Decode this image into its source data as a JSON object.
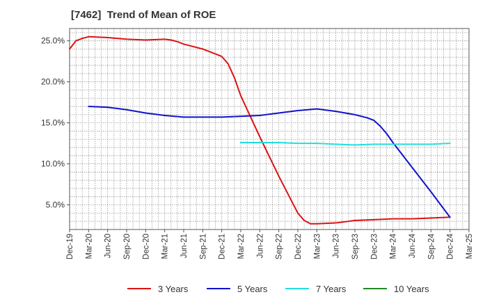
{
  "title": "[7462]  Trend of Mean of ROE",
  "chart_data": {
    "type": "line",
    "title": "[7462]  Trend of Mean of ROE",
    "xlabel": "",
    "ylabel": "",
    "x_ticks": [
      "Dec-19",
      "Mar-20",
      "Jun-20",
      "Sep-20",
      "Dec-20",
      "Mar-21",
      "Jun-21",
      "Sep-21",
      "Dec-21",
      "Mar-22",
      "Jun-22",
      "Sep-22",
      "Dec-22",
      "Mar-23",
      "Jun-23",
      "Sep-23",
      "Dec-23",
      "Mar-24",
      "Jun-24",
      "Sep-24",
      "Dec-24",
      "Mar-25"
    ],
    "y_ticks": [
      "5.0%",
      "10.0%",
      "15.0%",
      "20.0%",
      "25.0%"
    ],
    "y_tick_values": [
      5,
      10,
      15,
      20,
      25
    ],
    "ylim": [
      2,
      26.5
    ],
    "grid": true,
    "legend_position": "bottom",
    "series": [
      {
        "name": "3 Years",
        "color": "#dd1111",
        "points": [
          [
            "Dec-19",
            24.0
          ],
          [
            "Jan-20",
            25.0
          ],
          [
            "Feb-20",
            25.3
          ],
          [
            "Mar-20",
            25.5
          ],
          [
            "Jun-20",
            25.4
          ],
          [
            "Sep-20",
            25.2
          ],
          [
            "Dec-20",
            25.1
          ],
          [
            "Mar-21",
            25.2
          ],
          [
            "Apr-21",
            25.1
          ],
          [
            "May-21",
            24.9
          ],
          [
            "Jun-21",
            24.6
          ],
          [
            "Sep-21",
            24.0
          ],
          [
            "Nov-21",
            23.4
          ],
          [
            "Dec-21",
            23.1
          ],
          [
            "Jan-22",
            22.2
          ],
          [
            "Feb-22",
            20.5
          ],
          [
            "Mar-22",
            18.3
          ],
          [
            "Jun-22",
            13.3
          ],
          [
            "Sep-22",
            8.5
          ],
          [
            "Dec-22",
            4.0
          ],
          [
            "Jan-23",
            3.1
          ],
          [
            "Feb-23",
            2.7
          ],
          [
            "Mar-23",
            2.7
          ],
          [
            "Jun-23",
            2.8
          ],
          [
            "Sep-23",
            3.1
          ],
          [
            "Dec-23",
            3.2
          ],
          [
            "Mar-24",
            3.3
          ],
          [
            "Jun-24",
            3.3
          ],
          [
            "Sep-24",
            3.4
          ],
          [
            "Dec-24",
            3.5
          ]
        ]
      },
      {
        "name": "5 Years",
        "color": "#1111cc",
        "points": [
          [
            "Mar-20",
            17.0
          ],
          [
            "Jun-20",
            16.9
          ],
          [
            "Sep-20",
            16.6
          ],
          [
            "Dec-20",
            16.2
          ],
          [
            "Mar-21",
            15.9
          ],
          [
            "Jun-21",
            15.7
          ],
          [
            "Sep-21",
            15.7
          ],
          [
            "Dec-21",
            15.7
          ],
          [
            "Mar-22",
            15.8
          ],
          [
            "Jun-22",
            15.9
          ],
          [
            "Sep-22",
            16.2
          ],
          [
            "Dec-22",
            16.5
          ],
          [
            "Mar-23",
            16.7
          ],
          [
            "Apr-23",
            16.6
          ],
          [
            "Jun-23",
            16.4
          ],
          [
            "Sep-23",
            16.0
          ],
          [
            "Nov-23",
            15.6
          ],
          [
            "Dec-23",
            15.3
          ],
          [
            "Jan-24",
            14.6
          ],
          [
            "Feb-24",
            13.7
          ],
          [
            "Mar-24",
            12.6
          ],
          [
            "Jun-24",
            9.6
          ],
          [
            "Sep-24",
            6.6
          ],
          [
            "Dec-24",
            3.5
          ]
        ]
      },
      {
        "name": "7 Years",
        "color": "#22dddd",
        "points": [
          [
            "Mar-22",
            12.6
          ],
          [
            "Jun-22",
            12.6
          ],
          [
            "Sep-22",
            12.6
          ],
          [
            "Dec-22",
            12.5
          ],
          [
            "Mar-23",
            12.5
          ],
          [
            "Jun-23",
            12.4
          ],
          [
            "Sep-23",
            12.3
          ],
          [
            "Dec-23",
            12.4
          ],
          [
            "Mar-24",
            12.4
          ],
          [
            "Jun-24",
            12.4
          ],
          [
            "Sep-24",
            12.4
          ],
          [
            "Dec-24",
            12.5
          ]
        ]
      },
      {
        "name": "10 Years",
        "color": "#228822",
        "points": []
      }
    ]
  }
}
